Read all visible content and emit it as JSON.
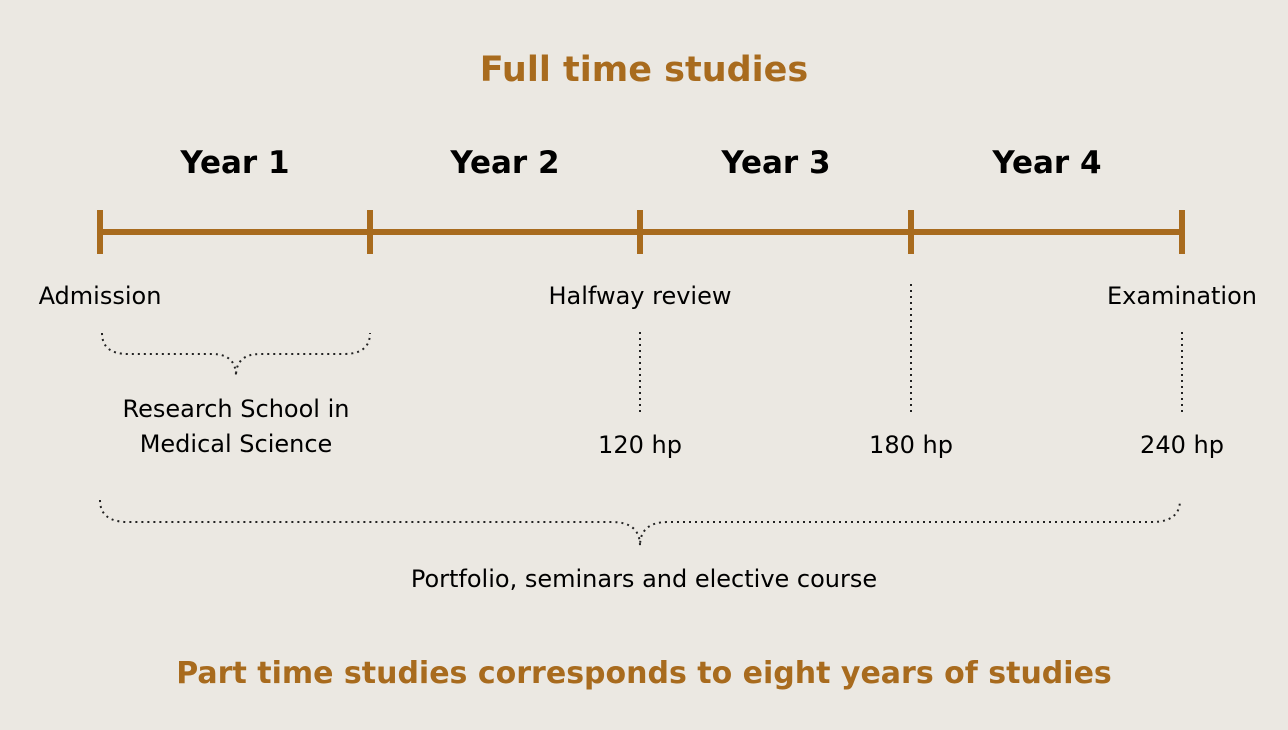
{
  "title": "Full time studies",
  "years": [
    "Year 1",
    "Year 2",
    "Year 3",
    "Year 4"
  ],
  "milestones": {
    "admission": "Admission",
    "halfway_review": "Halfway review",
    "examination": "Examination"
  },
  "research_school": {
    "line1": "Research School in",
    "line2": "Medical Science"
  },
  "credits": [
    "120 hp",
    "180 hp",
    "240 hp"
  ],
  "portfolio": "Portfolio, seminars and elective course",
  "footer": "Part time studies corresponds to eight years of studies",
  "colors": {
    "accent": "#a86b1e",
    "background": "#ebe8e2",
    "text": "#000000"
  }
}
